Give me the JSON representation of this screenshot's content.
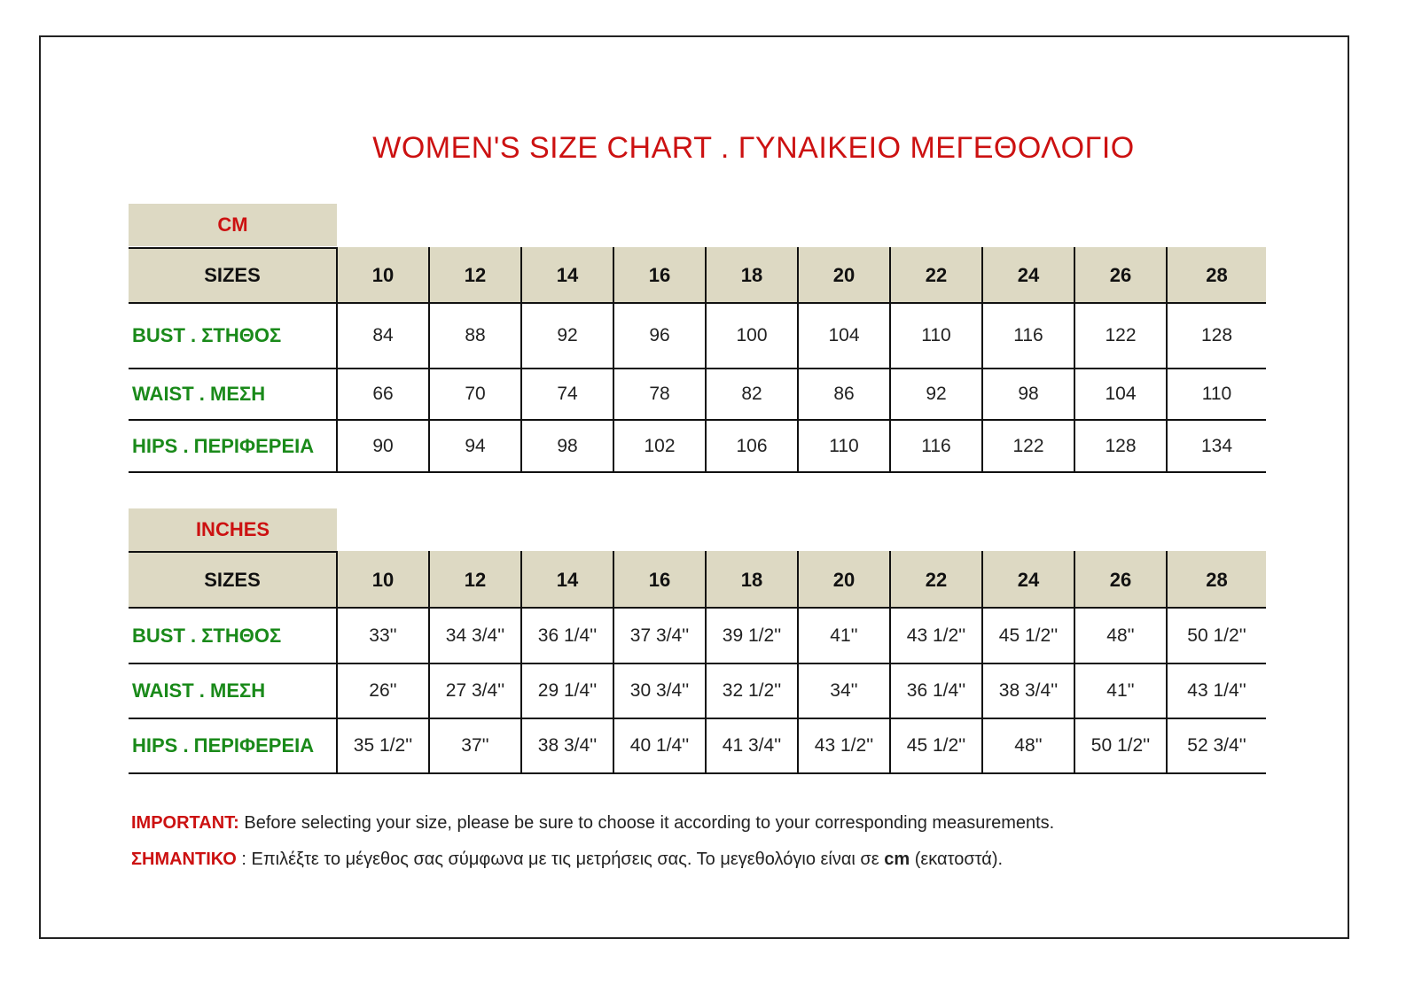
{
  "title": "WOMEN'S SIZE CHART . ΓΥΝΑΙΚΕΙΟ ΜΕΓΕΘΟΛΟΓΙΟ",
  "sizes_label": "SIZES",
  "sizes": [
    "10",
    "12",
    "14",
    "16",
    "18",
    "20",
    "22",
    "24",
    "26",
    "28"
  ],
  "cm": {
    "unit": "CM",
    "rows": [
      {
        "label": "BUST . ΣΤΗΘΟΣ",
        "values": [
          "84",
          "88",
          "92",
          "96",
          "100",
          "104",
          "110",
          "116",
          "122",
          "128"
        ]
      },
      {
        "label": "WAIST . ΜΕΣΗ",
        "values": [
          "66",
          "70",
          "74",
          "78",
          "82",
          "86",
          "92",
          "98",
          "104",
          "110"
        ]
      },
      {
        "label": "HIPS . ΠΕΡΙΦΕΡΕΙΑ",
        "values": [
          "90",
          "94",
          "98",
          "102",
          "106",
          "110",
          "116",
          "122",
          "128",
          "134"
        ]
      }
    ]
  },
  "inches": {
    "unit": "INCHES",
    "rows": [
      {
        "label": "BUST . ΣΤΗΘΟΣ",
        "values": [
          "33''",
          "34 3/4''",
          "36 1/4''",
          "37 3/4''",
          "39 1/2''",
          "41''",
          "43 1/2''",
          "45 1/2''",
          "48''",
          "50 1/2''"
        ]
      },
      {
        "label": "WAIST . ΜΕΣΗ",
        "values": [
          "26''",
          "27 3/4''",
          "29 1/4''",
          "30 3/4''",
          "32 1/2''",
          "34''",
          "36 1/4''",
          "38 3/4''",
          "41''",
          "43 1/4''"
        ]
      },
      {
        "label": "HIPS . ΠΕΡΙΦΕΡΕΙΑ",
        "values": [
          "35 1/2''",
          "37''",
          "38 3/4''",
          "40 1/4''",
          "41 3/4''",
          "43 1/2''",
          "45 1/2''",
          "48''",
          "50 1/2''",
          "52 3/4''"
        ]
      }
    ]
  },
  "notes": {
    "en_label": "IMPORTANT:",
    "en_text": " Before selecting your size, please be sure to choose it according to your corresponding measurements.",
    "gr_label": "ΣΗΜΑΝΤΙΚΟ",
    "gr_text_1": " : Επιλέξτε το μέγεθος σας σύμφωνα με τις μετρήσεις σας. Το μεγεθολόγιο είναι σε ",
    "gr_bold": "cm",
    "gr_text_2": " (εκατοστά)."
  },
  "colors": {
    "title": "#cc1111",
    "label": "#1a8a1a",
    "header_bg": "#ddd9c3"
  }
}
